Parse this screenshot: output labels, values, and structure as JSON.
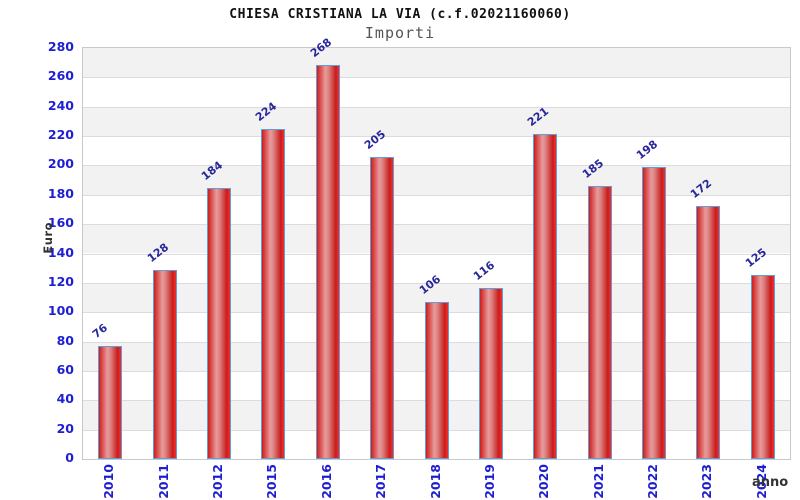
{
  "header": {
    "title": "CHIESA CRISTIANA LA VIA (c.f.02021160060)",
    "subtitle": "Importi"
  },
  "chart_data": {
    "type": "bar",
    "title": "CHIESA CRISTIANA LA VIA (c.f.02021160060)",
    "subtitle": "Importi",
    "xlabel": "anno",
    "ylabel": "Euro",
    "categories": [
      "2010",
      "2011",
      "2012",
      "2015",
      "2016",
      "2017",
      "2018",
      "2019",
      "2020",
      "2021",
      "2022",
      "2023",
      "2024"
    ],
    "values": [
      76,
      128,
      184,
      224,
      268,
      205,
      106,
      116,
      221,
      185,
      198,
      172,
      125
    ],
    "ylim": [
      0,
      280
    ],
    "ytick_step": 20,
    "ytick_labels": [
      "0",
      "20",
      "40",
      "60",
      "80",
      "100",
      "120",
      "140",
      "160",
      "180",
      "200",
      "220",
      "240",
      "260",
      "280"
    ],
    "grid": "horizontal gridlines with alternating gray/white bands",
    "legend": "none",
    "colors": {
      "bar_fill": "#d01c1c",
      "bar_highlight": "#e89a9a",
      "bar_border": "#5f9ed8",
      "tick_label": "#1e1ed2",
      "value_label": "#27279a",
      "band_gray": "#f2f2f2",
      "gridline": "#dcdcdc",
      "plot_border": "#c9c9c9",
      "title": "#111111",
      "subtitle": "#555555",
      "axis_title": "#333333"
    }
  }
}
